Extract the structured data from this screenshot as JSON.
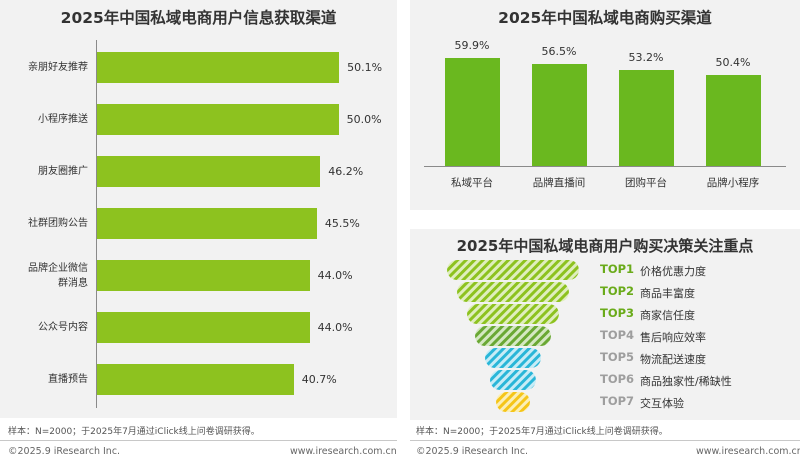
{
  "chart_data": [
    {
      "type": "bar",
      "orientation": "horizontal",
      "title": "2025年中国私域电商用户信息获取渠道",
      "categories": [
        "亲朋好友推荐",
        "小程序推送",
        "朋友圈推广",
        "社群团购公告",
        "品牌企业微信群消息",
        "公众号内容",
        "直播预告"
      ],
      "category_lines": [
        [
          "亲朋好友推荐"
        ],
        [
          "小程序推送"
        ],
        [
          "朋友圈推广"
        ],
        [
          "社群团购公告"
        ],
        [
          "品牌企业微信",
          "群消息"
        ],
        [
          "公众号内容"
        ],
        [
          "直播预告"
        ]
      ],
      "values": [
        50.1,
        50.0,
        46.2,
        45.5,
        44.0,
        44.0,
        40.7
      ],
      "value_labels": [
        "50.1%",
        "50.0%",
        "46.2%",
        "45.5%",
        "44.0%",
        "44.0%",
        "40.7%"
      ],
      "xlim": [
        0,
        60
      ],
      "bar_color": "#8dc21f",
      "grid": false
    },
    {
      "type": "bar",
      "orientation": "vertical",
      "title": "2025年中国私域电商购买渠道",
      "categories": [
        "私域平台",
        "品牌直播间",
        "团购平台",
        "品牌小程序"
      ],
      "values": [
        59.9,
        56.5,
        53.2,
        50.4
      ],
      "value_labels": [
        "59.9%",
        "56.5%",
        "53.2%",
        "50.4%"
      ],
      "ylim": [
        0,
        70
      ],
      "bar_color": "#6ab81f",
      "grid": false
    },
    {
      "type": "funnel",
      "title": "2025年中国私域电商用户购买决策关注重点",
      "items": [
        {
          "rank": "TOP1",
          "label": "价格优惠力度",
          "color": "#8dc21f",
          "rank_color": "#6aab1a"
        },
        {
          "rank": "TOP2",
          "label": "商品丰富度",
          "color": "#8dc21f",
          "rank_color": "#6aab1a"
        },
        {
          "rank": "TOP3",
          "label": "商家信任度",
          "color": "#8dc21f",
          "rank_color": "#6aab1a"
        },
        {
          "rank": "TOP4",
          "label": "售后响应效率",
          "color": "#7cb342",
          "rank_color": "#9e9e9e"
        },
        {
          "rank": "TOP5",
          "label": "物流配送速度",
          "color": "#29b6d8",
          "rank_color": "#9e9e9e"
        },
        {
          "rank": "TOP6",
          "label": "商品独家性/稀缺性",
          "color": "#29b6d8",
          "rank_color": "#9e9e9e"
        },
        {
          "rank": "TOP7",
          "label": "交互体验",
          "color": "#f5c518",
          "rank_color": "#9e9e9e"
        }
      ]
    }
  ],
  "notes": {
    "sample_left": "样本：N=2000；于2025年7月通过iClick线上问卷调研获得。",
    "sample_right": "样本：N=2000；于2025年7月通过iClick线上问卷调研获得。"
  },
  "footer": {
    "left_copyright": "©2025.9 iResearch Inc.",
    "left_url": "www.iresearch.com.cn",
    "right_copyright": "©2025.9 iResearch Inc.",
    "right_url": "www.iresearch.com.cn"
  }
}
